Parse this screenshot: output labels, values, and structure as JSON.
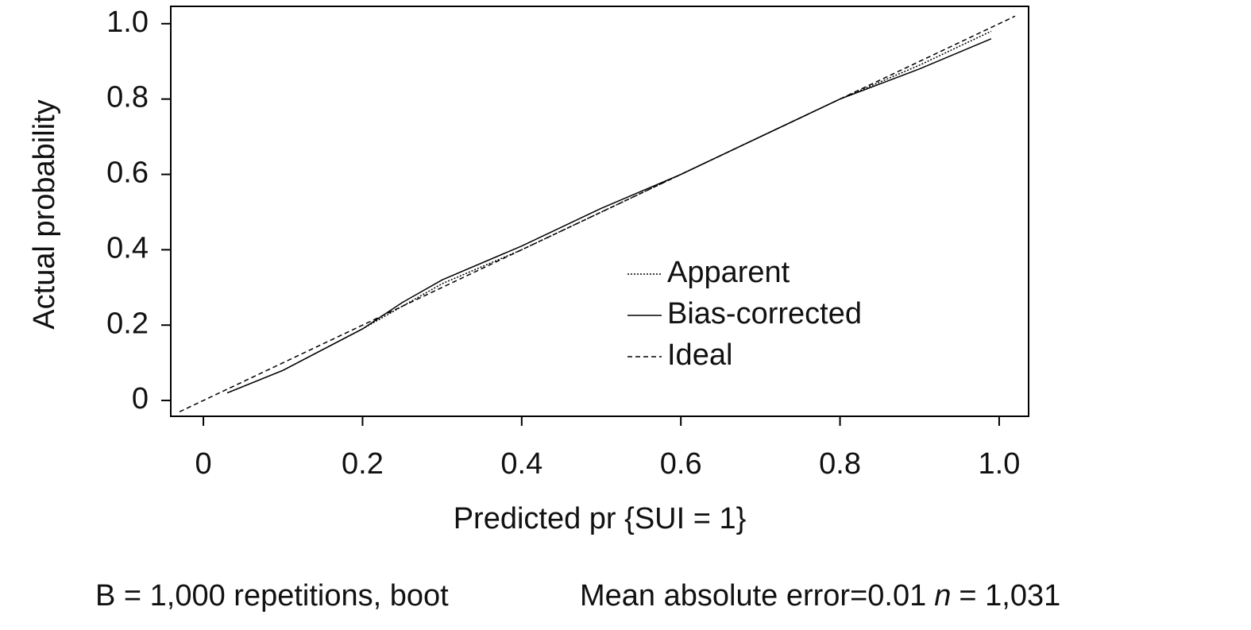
{
  "chart_data": {
    "type": "line",
    "x_label": "Predicted pr {SUI = 1}",
    "y_label": "Actual probability",
    "xlim": [
      -0.041,
      1.037
    ],
    "ylim": [
      -0.042,
      1.046
    ],
    "xticks": [
      0,
      0.2,
      0.4,
      0.6,
      0.8,
      {
        "value": 1,
        "label": "1.0"
      }
    ],
    "yticks": [
      0,
      0.2,
      0.4,
      0.6,
      0.8,
      {
        "value": 1,
        "label": "1.0"
      }
    ],
    "series": [
      {
        "name": "Apparent",
        "color": "#000000",
        "style": "dotted",
        "x": [
          0.03,
          0.1,
          0.2,
          0.25,
          0.3,
          0.4,
          0.5,
          0.6,
          0.7,
          0.8,
          0.9,
          0.99
        ],
        "values": [
          0.02,
          0.08,
          0.19,
          0.25,
          0.31,
          0.4,
          0.5,
          0.6,
          0.7,
          0.8,
          0.89,
          0.98
        ]
      },
      {
        "name": "Bias-corrected",
        "color": "#000000",
        "style": "solid",
        "x": [
          0.03,
          0.1,
          0.2,
          0.25,
          0.3,
          0.4,
          0.5,
          0.6,
          0.7,
          0.8,
          0.9,
          0.99
        ],
        "values": [
          0.02,
          0.08,
          0.19,
          0.26,
          0.32,
          0.41,
          0.51,
          0.6,
          0.7,
          0.8,
          0.88,
          0.96
        ]
      },
      {
        "name": "Ideal",
        "color": "#000000",
        "style": "dashed",
        "x": [
          -0.03,
          1.02
        ],
        "values": [
          -0.03,
          1.02
        ]
      }
    ],
    "note_left": "B = 1,000 repetitions, boot",
    "note_right": "Mean absolute error=0.01",
    "note_n": "n",
    "note_n_value": "= 1,031"
  }
}
